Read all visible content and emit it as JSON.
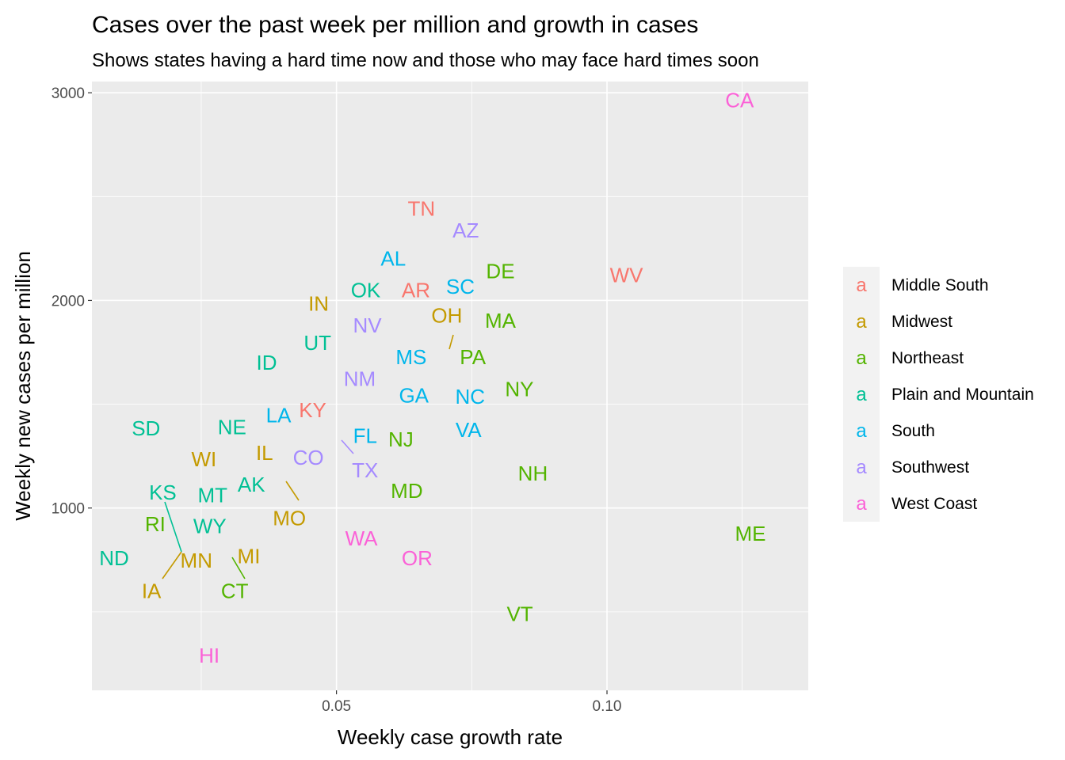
{
  "chart_data": {
    "type": "scatter",
    "title": "Cases over the past week per million and growth in cases",
    "subtitle": "Shows states having a hard time now and those who may face hard times soon",
    "xlabel": "Weekly case growth rate",
    "ylabel": "Weekly new cases per million",
    "x_ticks": [
      {
        "value": 0.05,
        "label": "0.05"
      },
      {
        "value": 0.1,
        "label": "0.10"
      }
    ],
    "y_ticks": [
      {
        "value": 1000,
        "label": "1000"
      },
      {
        "value": 2000,
        "label": "2000"
      },
      {
        "value": 3000,
        "label": "3000"
      }
    ],
    "xlim": [
      0.0048,
      0.1372
    ],
    "ylim": [
      122,
      3054
    ],
    "grid": true,
    "legend_position": "right",
    "legend_key_glyph": "a",
    "groups": [
      {
        "name": "Middle South",
        "color": "#F8766D"
      },
      {
        "name": "Midwest",
        "color": "#C49A00"
      },
      {
        "name": "Northeast",
        "color": "#53B400"
      },
      {
        "name": "Plain and Mountain",
        "color": "#00C094"
      },
      {
        "name": "South",
        "color": "#00B6EB"
      },
      {
        "name": "Southwest",
        "color": "#A58AFF"
      },
      {
        "name": "West Coast",
        "color": "#FB61D7"
      }
    ],
    "points": [
      {
        "label": "CA",
        "group": "West Coast",
        "x": 0.1245,
        "y": 2965
      },
      {
        "label": "TN",
        "group": "Middle South",
        "x": 0.0657,
        "y": 2443
      },
      {
        "label": "AZ",
        "group": "Southwest",
        "x": 0.0739,
        "y": 2337
      },
      {
        "label": "AL",
        "group": "South",
        "x": 0.0605,
        "y": 2201
      },
      {
        "label": "DE",
        "group": "Northeast",
        "x": 0.0803,
        "y": 2140
      },
      {
        "label": "WV",
        "group": "Middle South",
        "x": 0.1036,
        "y": 2122
      },
      {
        "label": "SC",
        "group": "South",
        "x": 0.0729,
        "y": 2066
      },
      {
        "label": "OK",
        "group": "Plain and Mountain",
        "x": 0.0554,
        "y": 2050
      },
      {
        "label": "AR",
        "group": "Middle South",
        "x": 0.0647,
        "y": 2050
      },
      {
        "label": "IN",
        "group": "Midwest",
        "x": 0.0467,
        "y": 1985
      },
      {
        "label": "MA",
        "group": "Northeast",
        "x": 0.0803,
        "y": 1903
      },
      {
        "label": "OH",
        "group": "Midwest",
        "x": 0.0704,
        "y": 1885
      },
      {
        "label": "NV",
        "group": "Southwest",
        "x": 0.0557,
        "y": 1880
      },
      {
        "label": "UT",
        "group": "Plain and Mountain",
        "x": 0.0465,
        "y": 1795
      },
      {
        "label": "MS",
        "group": "South",
        "x": 0.0638,
        "y": 1727
      },
      {
        "label": "PA",
        "group": "Northeast",
        "x": 0.0752,
        "y": 1727
      },
      {
        "label": "ID",
        "group": "Plain and Mountain",
        "x": 0.0371,
        "y": 1700
      },
      {
        "label": "NM",
        "group": "Southwest",
        "x": 0.0543,
        "y": 1622
      },
      {
        "label": "NY",
        "group": "Northeast",
        "x": 0.0838,
        "y": 1572
      },
      {
        "label": "GA",
        "group": "South",
        "x": 0.0643,
        "y": 1542
      },
      {
        "label": "NC",
        "group": "South",
        "x": 0.0747,
        "y": 1536
      },
      {
        "label": "KY",
        "group": "Middle South",
        "x": 0.0456,
        "y": 1471
      },
      {
        "label": "LA",
        "group": "South",
        "x": 0.0393,
        "y": 1446
      },
      {
        "label": "SD",
        "group": "Plain and Mountain",
        "x": 0.0148,
        "y": 1384
      },
      {
        "label": "NE",
        "group": "Plain and Mountain",
        "x": 0.0307,
        "y": 1389
      },
      {
        "label": "VA",
        "group": "South",
        "x": 0.0744,
        "y": 1377
      },
      {
        "label": "FL",
        "group": "South",
        "x": 0.0553,
        "y": 1347
      },
      {
        "label": "NJ",
        "group": "Northeast",
        "x": 0.0619,
        "y": 1331
      },
      {
        "label": "IL",
        "group": "Midwest",
        "x": 0.0367,
        "y": 1265
      },
      {
        "label": "CO",
        "group": "Southwest",
        "x": 0.0448,
        "y": 1243
      },
      {
        "label": "WI",
        "group": "Midwest",
        "x": 0.0255,
        "y": 1235
      },
      {
        "label": "TX",
        "group": "Southwest",
        "x": 0.0553,
        "y": 1181
      },
      {
        "label": "NH",
        "group": "Northeast",
        "x": 0.0863,
        "y": 1166
      },
      {
        "label": "AK",
        "group": "Plain and Mountain",
        "x": 0.0353,
        "y": 1113
      },
      {
        "label": "KS",
        "group": "Plain and Mountain",
        "x": 0.0179,
        "y": 1075
      },
      {
        "label": "MD",
        "group": "Northeast",
        "x": 0.063,
        "y": 1082
      },
      {
        "label": "MT",
        "group": "Plain and Mountain",
        "x": 0.0271,
        "y": 1061
      },
      {
        "label": "MO",
        "group": "Midwest",
        "x": 0.0413,
        "y": 951
      },
      {
        "label": "RI",
        "group": "Northeast",
        "x": 0.0165,
        "y": 923
      },
      {
        "label": "WY",
        "group": "Plain and Mountain",
        "x": 0.0266,
        "y": 913
      },
      {
        "label": "ME",
        "group": "Northeast",
        "x": 0.1265,
        "y": 876
      },
      {
        "label": "WA",
        "group": "West Coast",
        "x": 0.0546,
        "y": 854
      },
      {
        "label": "MI",
        "group": "Midwest",
        "x": 0.0338,
        "y": 769
      },
      {
        "label": "ND",
        "group": "Plain and Mountain",
        "x": 0.0089,
        "y": 758
      },
      {
        "label": "MN",
        "group": "Midwest",
        "x": 0.0241,
        "y": 748
      },
      {
        "label": "OR",
        "group": "West Coast",
        "x": 0.0649,
        "y": 758
      },
      {
        "label": "CT",
        "group": "Northeast",
        "x": 0.0312,
        "y": 601
      },
      {
        "label": "IA",
        "group": "Midwest",
        "x": 0.0158,
        "y": 601
      },
      {
        "label": "VT",
        "group": "Northeast",
        "x": 0.0839,
        "y": 489
      },
      {
        "label": "HI",
        "group": "West Coast",
        "x": 0.0265,
        "y": 289
      }
    ]
  }
}
